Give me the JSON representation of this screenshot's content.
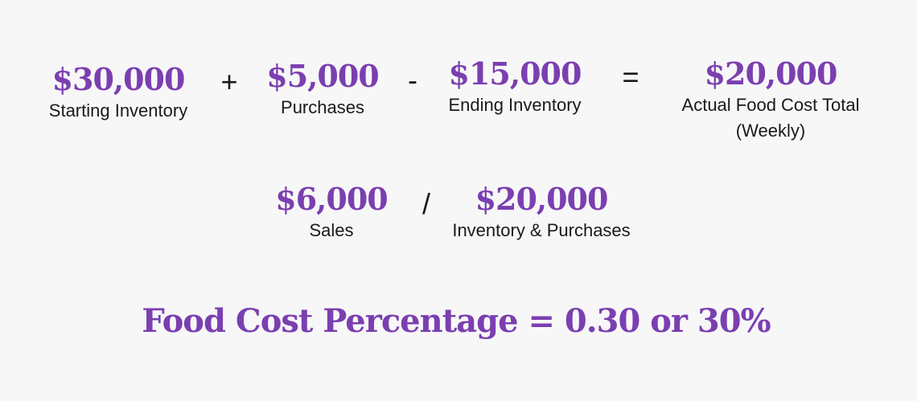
{
  "row1": [
    {
      "value": "$30,000",
      "label": "Starting Inventory"
    },
    {
      "value": "$5,000",
      "label": "Purchases"
    },
    {
      "value": "$15,000",
      "label": "Ending Inventory"
    },
    {
      "value": "$20,000",
      "label": "Actual Food Cost Total",
      "label2": "(Weekly)"
    }
  ],
  "row1_ops": [
    "+",
    "-",
    "="
  ],
  "row2": [
    {
      "value": "$6,000",
      "label": "Sales"
    },
    {
      "value": "$20,000",
      "label": "Inventory & Purchases"
    }
  ],
  "row2_op": "/",
  "result": "Food Cost Percentage = 0.30 or 30%",
  "colors": {
    "accent": "#7b3fb0",
    "background": "#f7f7f8",
    "text": "#1a1a1a"
  }
}
